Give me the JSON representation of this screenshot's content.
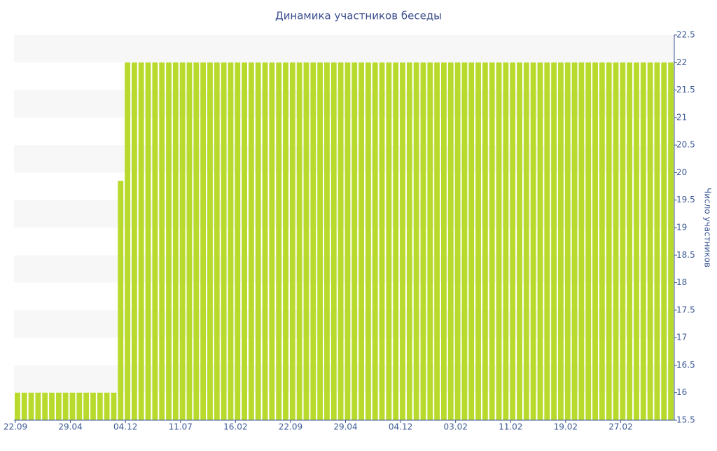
{
  "chart_data": {
    "type": "bar",
    "title": "Динамика участников беседы",
    "y_axis_label": "Число участников",
    "categories": [
      "22.09",
      null,
      null,
      null,
      null,
      null,
      null,
      null,
      "29.04",
      null,
      null,
      null,
      null,
      null,
      null,
      null,
      "04.12",
      null,
      null,
      null,
      null,
      null,
      null,
      null,
      "11.07",
      null,
      null,
      null,
      null,
      null,
      null,
      null,
      "16.02",
      null,
      null,
      null,
      null,
      null,
      null,
      null,
      "22.09",
      null,
      null,
      null,
      null,
      null,
      null,
      null,
      "29.04",
      null,
      null,
      null,
      null,
      null,
      null,
      null,
      "04.12",
      null,
      null,
      null,
      null,
      null,
      null,
      null,
      "03.02",
      null,
      null,
      null,
      null,
      null,
      null,
      null,
      "11.02",
      null,
      null,
      null,
      null,
      null,
      null,
      null,
      "19.02",
      null,
      null,
      null,
      null,
      null,
      null,
      null,
      "27.02",
      null,
      null,
      null,
      null,
      null,
      null,
      null
    ],
    "values": [
      16,
      16,
      16,
      16,
      16,
      16,
      16,
      16,
      16,
      16,
      16,
      16,
      16,
      16,
      16,
      19.85,
      22,
      22,
      22,
      22,
      22,
      22,
      22,
      22,
      22,
      22,
      22,
      22,
      22,
      22,
      22,
      22,
      22,
      22,
      22,
      22,
      22,
      22,
      22,
      22,
      22,
      22,
      22,
      22,
      22,
      22,
      22,
      22,
      22,
      22,
      22,
      22,
      22,
      22,
      22,
      22,
      22,
      22,
      22,
      22,
      22,
      22,
      22,
      22,
      22,
      22,
      22,
      22,
      22,
      22,
      22,
      22,
      22,
      22,
      22,
      22,
      22,
      22,
      22,
      22,
      22,
      22,
      22,
      22,
      22,
      22,
      22,
      22,
      22,
      22,
      22,
      22,
      22,
      22,
      22,
      22
    ],
    "color": "#b8da2c",
    "ylim": [
      15.5,
      22.5
    ],
    "yticks": [
      15.5,
      16,
      16.5,
      17,
      17.5,
      18,
      18.5,
      19,
      19.5,
      20,
      20.5,
      21,
      21.5,
      22,
      22.5
    ],
    "y_axis_side": "right",
    "grid": "bands"
  }
}
